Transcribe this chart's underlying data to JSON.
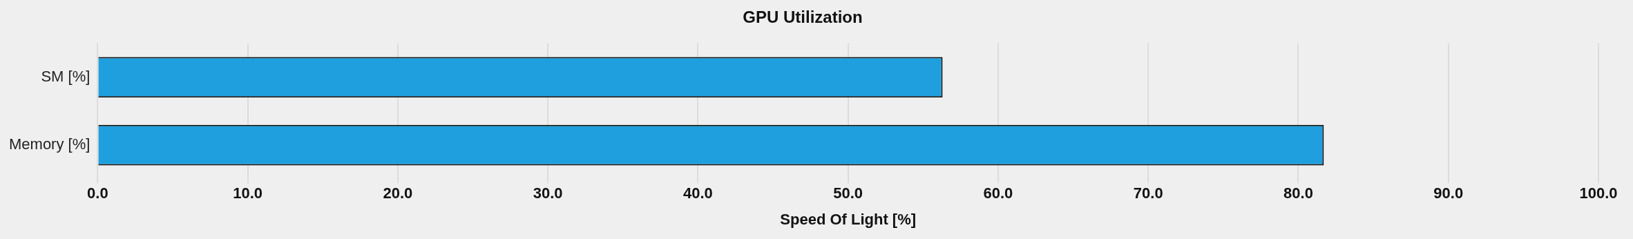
{
  "chart_data": {
    "type": "bar",
    "orientation": "horizontal",
    "title": "GPU Utilization",
    "xlabel": "Speed Of Light [%]",
    "categories": [
      "SM [%]",
      "Memory [%]"
    ],
    "values": [
      56.3,
      81.7
    ],
    "color": "#1f9fde",
    "xlim": [
      0,
      100
    ],
    "xticks": [
      {
        "value": 0,
        "label": "0.0"
      },
      {
        "value": 10,
        "label": "10.0"
      },
      {
        "value": 20,
        "label": "20.0"
      },
      {
        "value": 30,
        "label": "30.0"
      },
      {
        "value": 40,
        "label": "40.0"
      },
      {
        "value": 50,
        "label": "50.0"
      },
      {
        "value": 60,
        "label": "60.0"
      },
      {
        "value": 70,
        "label": "70.0"
      },
      {
        "value": 80,
        "label": "80.0"
      },
      {
        "value": 90,
        "label": "90.0"
      },
      {
        "value": 100,
        "label": "100.0"
      }
    ],
    "grid": "x"
  }
}
